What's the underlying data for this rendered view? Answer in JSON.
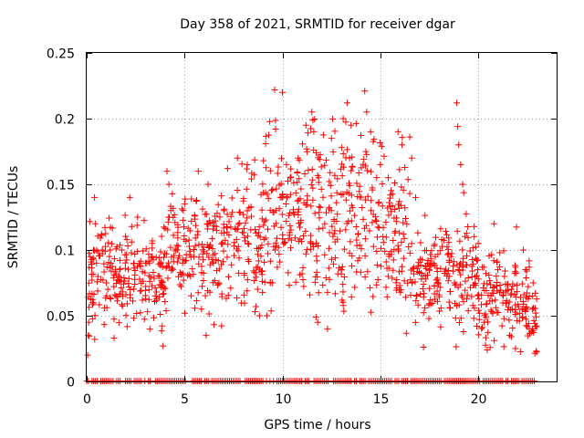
{
  "chart_data": {
    "type": "scatter",
    "title": "Day 358 of 2021, SRMTID for receiver dgar",
    "xlabel": "GPS time / hours",
    "ylabel": "SRMTID / TECUs",
    "xlim": [
      0,
      24
    ],
    "ylim": [
      0,
      0.25
    ],
    "grid": true,
    "marker": "+",
    "series_color": "#ff0000",
    "x_ticks": [
      {
        "value": 0,
        "label": "0"
      },
      {
        "value": 5,
        "label": "5"
      },
      {
        "value": 10,
        "label": "10"
      },
      {
        "value": 15,
        "label": "15"
      },
      {
        "value": 20,
        "label": "20"
      }
    ],
    "y_ticks": [
      {
        "value": 0,
        "label": "0"
      },
      {
        "value": 0.05,
        "label": "0.05"
      },
      {
        "value": 0.1,
        "label": "0.1"
      },
      {
        "value": 0.15,
        "label": "0.15"
      },
      {
        "value": 0.2,
        "label": "0.2"
      },
      {
        "value": 0.25,
        "label": "0.25"
      }
    ],
    "density_profile": [
      {
        "x_start": 0.0,
        "x_end": 0.5,
        "y_mean": 0.07,
        "y_spread": 0.025
      },
      {
        "x_start": 0.5,
        "x_end": 2.0,
        "y_mean": 0.085,
        "y_spread": 0.02
      },
      {
        "x_start": 2.0,
        "x_end": 4.0,
        "y_mean": 0.08,
        "y_spread": 0.02
      },
      {
        "x_start": 4.0,
        "x_end": 5.0,
        "y_mean": 0.105,
        "y_spread": 0.025
      },
      {
        "x_start": 5.0,
        "x_end": 7.0,
        "y_mean": 0.1,
        "y_spread": 0.025
      },
      {
        "x_start": 7.0,
        "x_end": 9.0,
        "y_mean": 0.105,
        "y_spread": 0.03
      },
      {
        "x_start": 9.0,
        "x_end": 10.5,
        "y_mean": 0.12,
        "y_spread": 0.035
      },
      {
        "x_start": 10.5,
        "x_end": 12.5,
        "y_mean": 0.13,
        "y_spread": 0.04
      },
      {
        "x_start": 12.5,
        "x_end": 15.0,
        "y_mean": 0.125,
        "y_spread": 0.04
      },
      {
        "x_start": 15.0,
        "x_end": 16.5,
        "y_mean": 0.115,
        "y_spread": 0.035
      },
      {
        "x_start": 16.5,
        "x_end": 18.0,
        "y_mean": 0.08,
        "y_spread": 0.02
      },
      {
        "x_start": 18.0,
        "x_end": 20.0,
        "y_mean": 0.085,
        "y_spread": 0.025
      },
      {
        "x_start": 20.0,
        "x_end": 22.0,
        "y_mean": 0.065,
        "y_spread": 0.02
      },
      {
        "x_start": 22.0,
        "x_end": 23.0,
        "y_mean": 0.055,
        "y_spread": 0.02
      }
    ],
    "points": [
      {
        "x": 0.05,
        "y": 0.02
      },
      {
        "x": 0.08,
        "y": 0.035
      },
      {
        "x": 0.1,
        "y": 0.045
      },
      {
        "x": 0.3,
        "y": 0.06
      },
      {
        "x": 0.35,
        "y": 0.1
      },
      {
        "x": 0.4,
        "y": 0.14
      },
      {
        "x": 0.45,
        "y": 0.12
      },
      {
        "x": 0.5,
        "y": 0.09
      },
      {
        "x": 0.8,
        "y": 0.1
      },
      {
        "x": 1.0,
        "y": 0.075
      },
      {
        "x": 1.2,
        "y": 0.1
      },
      {
        "x": 1.4,
        "y": 0.033
      },
      {
        "x": 1.5,
        "y": 0.065
      },
      {
        "x": 1.8,
        "y": 0.1
      },
      {
        "x": 2.2,
        "y": 0.14
      },
      {
        "x": 2.6,
        "y": 0.125
      },
      {
        "x": 3.0,
        "y": 0.09
      },
      {
        "x": 3.4,
        "y": 0.083
      },
      {
        "x": 3.9,
        "y": 0.027
      },
      {
        "x": 4.1,
        "y": 0.16
      },
      {
        "x": 4.2,
        "y": 0.15
      },
      {
        "x": 4.3,
        "y": 0.13
      },
      {
        "x": 5.0,
        "y": 0.135
      },
      {
        "x": 5.3,
        "y": 0.08
      },
      {
        "x": 6.1,
        "y": 0.035
      },
      {
        "x": 6.2,
        "y": 0.15
      },
      {
        "x": 7.0,
        "y": 0.13
      },
      {
        "x": 7.7,
        "y": 0.17
      },
      {
        "x": 8.2,
        "y": 0.165
      },
      {
        "x": 8.6,
        "y": 0.053
      },
      {
        "x": 9.2,
        "y": 0.05
      },
      {
        "x": 9.6,
        "y": 0.222
      },
      {
        "x": 9.65,
        "y": 0.192
      },
      {
        "x": 10.0,
        "y": 0.22
      },
      {
        "x": 10.2,
        "y": 0.165
      },
      {
        "x": 10.8,
        "y": 0.17
      },
      {
        "x": 11.2,
        "y": 0.195
      },
      {
        "x": 11.5,
        "y": 0.205
      },
      {
        "x": 11.6,
        "y": 0.19
      },
      {
        "x": 11.8,
        "y": 0.045
      },
      {
        "x": 12.3,
        "y": 0.04
      },
      {
        "x": 12.5,
        "y": 0.185
      },
      {
        "x": 13.1,
        "y": 0.2
      },
      {
        "x": 13.3,
        "y": 0.212
      },
      {
        "x": 13.5,
        "y": 0.195
      },
      {
        "x": 14.2,
        "y": 0.221
      },
      {
        "x": 14.3,
        "y": 0.205
      },
      {
        "x": 14.5,
        "y": 0.19
      },
      {
        "x": 15.0,
        "y": 0.165
      },
      {
        "x": 15.4,
        "y": 0.155
      },
      {
        "x": 15.9,
        "y": 0.19
      },
      {
        "x": 16.1,
        "y": 0.18
      },
      {
        "x": 16.5,
        "y": 0.186
      },
      {
        "x": 16.6,
        "y": 0.17
      },
      {
        "x": 16.8,
        "y": 0.14
      },
      {
        "x": 17.2,
        "y": 0.026
      },
      {
        "x": 17.4,
        "y": 0.09
      },
      {
        "x": 17.8,
        "y": 0.095
      },
      {
        "x": 18.6,
        "y": 0.095
      },
      {
        "x": 18.9,
        "y": 0.212
      },
      {
        "x": 18.95,
        "y": 0.194
      },
      {
        "x": 19.0,
        "y": 0.18
      },
      {
        "x": 19.1,
        "y": 0.165
      },
      {
        "x": 19.2,
        "y": 0.15
      },
      {
        "x": 20.0,
        "y": 0.105
      },
      {
        "x": 20.3,
        "y": 0.045
      },
      {
        "x": 20.8,
        "y": 0.12
      },
      {
        "x": 21.0,
        "y": 0.085
      },
      {
        "x": 21.6,
        "y": 0.035
      },
      {
        "x": 21.9,
        "y": 0.025
      },
      {
        "x": 22.3,
        "y": 0.1
      },
      {
        "x": 22.6,
        "y": 0.04
      },
      {
        "x": 22.8,
        "y": 0.075
      }
    ],
    "zero_band": {
      "y": 0,
      "x_start": 0.0,
      "x_end": 22.9
    }
  }
}
